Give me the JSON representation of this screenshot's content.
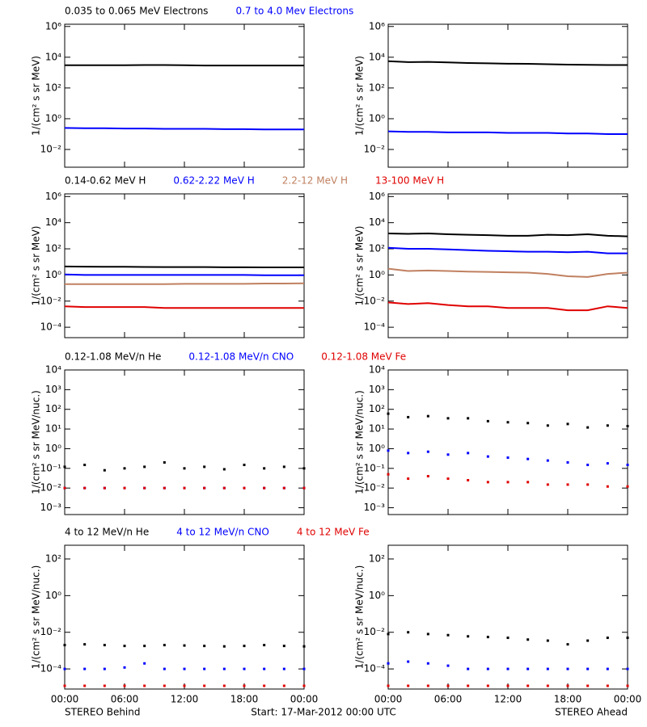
{
  "x_axis": {
    "xlim": [
      0,
      24
    ],
    "x": [
      0,
      2,
      4,
      6,
      8,
      10,
      12,
      14,
      16,
      18,
      20,
      22,
      24
    ],
    "xticks": [
      {
        "value": 0,
        "label": "00:00"
      },
      {
        "value": 6,
        "label": "06:00"
      },
      {
        "value": 12,
        "label": "12:00"
      },
      {
        "value": 18,
        "label": "18:00"
      },
      {
        "value": 24,
        "label": "00:00"
      }
    ]
  },
  "footer": {
    "left": "STEREO Behind",
    "center": "Start: 17-Mar-2012 00:00 UTC",
    "right": "STEREO Ahead"
  },
  "chart_data": [
    {
      "type": "line",
      "log_scale": true,
      "ylabel": "1/(cm² s sr MeV)",
      "ylim": [
        0.0007,
        1400000
      ],
      "yticks": [
        {
          "value": 0.01,
          "label": "10⁻²"
        },
        {
          "value": 1,
          "label": "10⁰"
        },
        {
          "value": 100,
          "label": "10²"
        },
        {
          "value": 10000,
          "label": "10⁴"
        },
        {
          "value": 1000000,
          "label": "10⁶"
        }
      ],
      "series": [
        {
          "name": "0.035 to 0.065 MeV Electrons",
          "color": "#000000",
          "behind": [
            3000,
            3000,
            3000,
            3000,
            3100,
            3100,
            3000,
            2900,
            2900,
            2900,
            2900,
            2900,
            2900
          ],
          "ahead": [
            5500,
            4800,
            5000,
            4600,
            4200,
            4000,
            3800,
            3700,
            3500,
            3300,
            3200,
            3100,
            3100
          ]
        },
        {
          "name": "0.7 to 4.0 Mev Electrons",
          "color": "#0000ff",
          "behind": [
            0.25,
            0.24,
            0.24,
            0.23,
            0.23,
            0.22,
            0.22,
            0.22,
            0.21,
            0.21,
            0.2,
            0.2,
            0.2
          ],
          "ahead": [
            0.15,
            0.14,
            0.14,
            0.13,
            0.13,
            0.13,
            0.12,
            0.12,
            0.12,
            0.11,
            0.11,
            0.1,
            0.1
          ]
        }
      ]
    },
    {
      "type": "line",
      "log_scale": true,
      "ylabel": "1/(cm² s sr MeV)",
      "ylim": [
        1.6e-05,
        1600000
      ],
      "yticks": [
        {
          "value": 0.0001,
          "label": "10⁻⁴"
        },
        {
          "value": 0.01,
          "label": "10⁻²"
        },
        {
          "value": 1,
          "label": "10⁰"
        },
        {
          "value": 100,
          "label": "10²"
        },
        {
          "value": 10000,
          "label": "10⁴"
        },
        {
          "value": 1000000,
          "label": "10⁶"
        }
      ],
      "series": [
        {
          "name": "0.14-0.62 MeV H",
          "color": "#000000",
          "behind": [
            4.5,
            4.3,
            4.2,
            4.2,
            4.1,
            4,
            4,
            4,
            3.9,
            3.9,
            3.8,
            3.8,
            3.8
          ],
          "ahead": [
            1500,
            1400,
            1500,
            1300,
            1200,
            1100,
            1000,
            1000,
            1200,
            1100,
            1300,
            1000,
            900
          ]
        },
        {
          "name": "0.62-2.22 MeV H",
          "color": "#0000ff",
          "behind": [
            1.1,
            1,
            1,
            1,
            1,
            1,
            1,
            1,
            1,
            1,
            0.95,
            0.95,
            0.95
          ],
          "ahead": [
            120,
            100,
            100,
            90,
            80,
            70,
            65,
            60,
            60,
            55,
            60,
            45,
            45
          ]
        },
        {
          "name": "2.2-12 MeV H",
          "color": "#c08060",
          "behind": [
            0.2,
            0.2,
            0.2,
            0.2,
            0.2,
            0.2,
            0.21,
            0.21,
            0.21,
            0.21,
            0.22,
            0.22,
            0.23
          ],
          "ahead": [
            3,
            2,
            2.2,
            2,
            1.8,
            1.7,
            1.6,
            1.5,
            1.2,
            0.8,
            0.7,
            1.2,
            1.5
          ]
        },
        {
          "name": "13-100 MeV H",
          "color": "#e00000",
          "behind": [
            0.004,
            0.0035,
            0.0035,
            0.0035,
            0.0035,
            0.003,
            0.003,
            0.003,
            0.003,
            0.003,
            0.003,
            0.003,
            0.003
          ],
          "ahead": [
            0.008,
            0.006,
            0.007,
            0.005,
            0.004,
            0.004,
            0.003,
            0.003,
            0.003,
            0.002,
            0.002,
            0.004,
            0.003
          ]
        }
      ]
    },
    {
      "type": "scatter",
      "log_scale": true,
      "ylabel": "1/(cm² s sr MeV/nuc.)",
      "ylim": [
        0.00045,
        10000
      ],
      "yticks": [
        {
          "value": 0.001,
          "label": "10⁻³"
        },
        {
          "value": 0.01,
          "label": "10⁻²"
        },
        {
          "value": 0.1,
          "label": "10⁻¹"
        },
        {
          "value": 1,
          "label": "10⁰"
        },
        {
          "value": 10,
          "label": "10¹"
        },
        {
          "value": 100,
          "label": "10²"
        },
        {
          "value": 1000,
          "label": "10³"
        },
        {
          "value": 10000,
          "label": "10⁴"
        }
      ],
      "series": [
        {
          "name": "0.12-1.08 MeV/n He",
          "color": "#000000",
          "behind": [
            0.12,
            0.15,
            0.08,
            0.1,
            0.12,
            0.2,
            0.1,
            0.12,
            0.09,
            0.15,
            0.1,
            0.12,
            0.1
          ],
          "ahead": [
            60,
            40,
            45,
            35,
            35,
            25,
            22,
            20,
            15,
            18,
            12,
            15,
            14
          ]
        },
        {
          "name": "0.12-1.08 MeV/n CNO",
          "color": "#0000ff",
          "behind": [
            0.01,
            0.01,
            0.01,
            0.01,
            0.01,
            0.01,
            0.01,
            0.01,
            0.01,
            0.01,
            0.01,
            0.01,
            0.01
          ],
          "ahead": [
            0.8,
            0.6,
            0.7,
            0.5,
            0.6,
            0.4,
            0.35,
            0.3,
            0.25,
            0.2,
            0.15,
            0.18,
            0.15
          ]
        },
        {
          "name": "0.12-1.08 MeV Fe",
          "color": "#e00000",
          "behind": [
            0.01,
            0.01,
            0.01,
            0.01,
            0.01,
            0.01,
            0.01,
            0.01,
            0.01,
            0.01,
            0.01,
            0.01,
            0.01
          ],
          "ahead": [
            0.05,
            0.03,
            0.04,
            0.03,
            0.025,
            0.02,
            0.02,
            0.02,
            0.015,
            0.015,
            0.015,
            0.012,
            0.012
          ]
        }
      ]
    },
    {
      "type": "scatter",
      "log_scale": true,
      "ylabel": "1/(cm² s sr MeV/nuc.)",
      "ylim": [
        8e-06,
        560
      ],
      "yticks": [
        {
          "value": 0.0001,
          "label": "10⁻⁴"
        },
        {
          "value": 0.01,
          "label": "10⁻²"
        },
        {
          "value": 1,
          "label": "10⁰"
        },
        {
          "value": 100,
          "label": "10²"
        }
      ],
      "series": [
        {
          "name": "4 to 12 MeV/n He",
          "color": "#000000",
          "behind": [
            0.002,
            0.0022,
            0.002,
            0.0018,
            0.0018,
            0.002,
            0.0019,
            0.0018,
            0.0017,
            0.0018,
            0.002,
            0.0018,
            0.0017
          ],
          "ahead": [
            0.008,
            0.01,
            0.008,
            0.007,
            0.006,
            0.0055,
            0.005,
            0.004,
            0.0035,
            0.0022,
            0.0035,
            0.005,
            0.005
          ]
        },
        {
          "name": "4 to 12 MeV/n CNO",
          "color": "#0000ff",
          "behind": [
            0.0001,
            0.0001,
            0.0001,
            0.00012,
            0.0002,
            0.0001,
            0.0001,
            0.0001,
            0.0001,
            0.0001,
            0.0001,
            0.0001,
            0.0001
          ],
          "ahead": [
            0.0002,
            0.00025,
            0.0002,
            0.00015,
            0.0001,
            0.0001,
            0.0001,
            0.0001,
            0.0001,
            0.0001,
            0.0001,
            0.0001,
            0.0001
          ]
        },
        {
          "name": "4 to 12 MeV Fe",
          "color": "#e00000",
          "behind": [
            1.2e-05,
            1.2e-05,
            1.2e-05,
            1.2e-05,
            1.2e-05,
            1.2e-05,
            1.2e-05,
            1.2e-05,
            1.2e-05,
            1.2e-05,
            1.2e-05,
            1.2e-05,
            1.2e-05
          ],
          "ahead": [
            1.2e-05,
            1.2e-05,
            1.2e-05,
            1.2e-05,
            1.2e-05,
            1.2e-05,
            1.2e-05,
            1.2e-05,
            1.2e-05,
            1.2e-05,
            1.2e-05,
            1.2e-05,
            1.2e-05
          ]
        }
      ]
    }
  ]
}
